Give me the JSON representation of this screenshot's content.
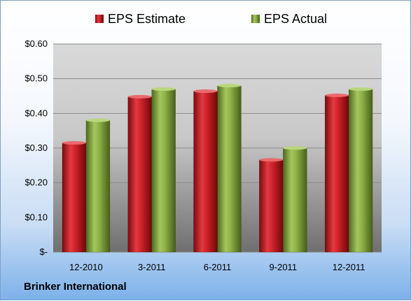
{
  "chart_data": {
    "type": "bar",
    "categories": [
      "12-2010",
      "3-2011",
      "6-2011",
      "9-2011",
      "12-2011"
    ],
    "series": [
      {
        "name": "EPS Estimate",
        "values": [
          0.315,
          0.448,
          0.464,
          0.266,
          0.452
        ],
        "color": "#c0161c"
      },
      {
        "name": "EPS Actual",
        "values": [
          0.38,
          0.47,
          0.48,
          0.3,
          0.47
        ],
        "color": "#7ea33a"
      }
    ],
    "y_ticks": [
      {
        "value": 0,
        "label": "$-"
      },
      {
        "value": 0.1,
        "label": "$0.10"
      },
      {
        "value": 0.2,
        "label": "$0.20"
      },
      {
        "value": 0.3,
        "label": "$0.30"
      },
      {
        "value": 0.4,
        "label": "$0.40"
      },
      {
        "value": 0.5,
        "label": "$0.50"
      },
      {
        "value": 0.6,
        "label": "$0.60"
      }
    ],
    "ylim": [
      0,
      0.6
    ],
    "grid": true,
    "legend_position": "top-center"
  },
  "company": "Brinker International"
}
